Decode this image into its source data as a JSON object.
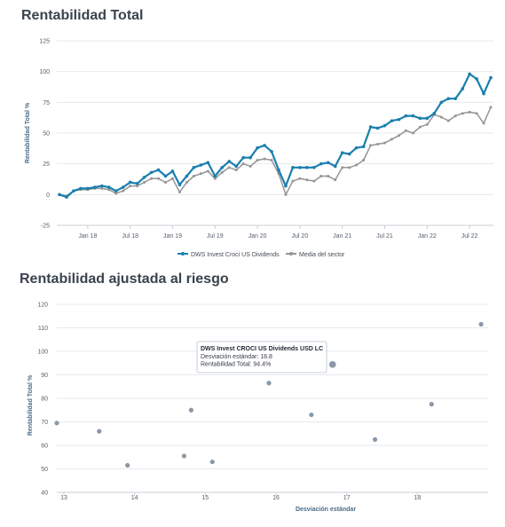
{
  "sections": {
    "total_return_title": "Rentabilidad Total",
    "risk_adjusted_title": "Rentabilidad ajustada al riesgo"
  },
  "chart_data": [
    {
      "type": "line",
      "ylabel": "Rentabilidad Total %",
      "xlabel": "",
      "ylim": [
        -25,
        125
      ],
      "yticks": [
        -25,
        0,
        25,
        50,
        75,
        100,
        125
      ],
      "xticks": [
        "Jan 18",
        "Jul 18",
        "Jan 19",
        "Jul 19",
        "Jan 20",
        "Jul 20",
        "Jan 21",
        "Jul 21",
        "Jan 22",
        "Jul 22"
      ],
      "x_start": "Sep 17",
      "x_step": "month",
      "grid": true,
      "legend_position": "bottom",
      "series": [
        {
          "name": "DWS Invest Croci US Dividends",
          "color": "#1a7fae",
          "values": [
            0,
            -2,
            3,
            5,
            5,
            6,
            7,
            6,
            3,
            6,
            10,
            9,
            14,
            18,
            20,
            15,
            19,
            8,
            15,
            22,
            24,
            26,
            15,
            22,
            27,
            23,
            30,
            30,
            38,
            40,
            35,
            20,
            7,
            22,
            22,
            22,
            22,
            25,
            26,
            23,
            34,
            33,
            38,
            39,
            55,
            54,
            56,
            60,
            61,
            64,
            64,
            62,
            62,
            66,
            75,
            78,
            78,
            86,
            98,
            94,
            82,
            95
          ]
        },
        {
          "name": "Media del sector",
          "color": "#959595",
          "values": [
            0,
            -1,
            3,
            4,
            4,
            5,
            5,
            4,
            1,
            3,
            7,
            7,
            10,
            13,
            13,
            10,
            13,
            2,
            10,
            15,
            17,
            19,
            13,
            18,
            22,
            20,
            25,
            23,
            28,
            29,
            28,
            17,
            0,
            11,
            13,
            12,
            11,
            15,
            15,
            12,
            22,
            22,
            24,
            28,
            40,
            41,
            42,
            45,
            48,
            52,
            50,
            55,
            57,
            65,
            63,
            60,
            64,
            66,
            67,
            66,
            58,
            71
          ]
        }
      ]
    },
    {
      "type": "scatter",
      "xlabel": "Desviación estándar",
      "ylabel": "Rentabilidad Total %",
      "xlim": [
        12.9,
        19
      ],
      "ylim": [
        40,
        120
      ],
      "xticks": [
        13,
        14,
        15,
        16,
        17,
        18
      ],
      "yticks": [
        40,
        50,
        60,
        70,
        80,
        90,
        100,
        110,
        120
      ],
      "grid": true,
      "points": [
        {
          "x": 12.9,
          "y": 69.5
        },
        {
          "x": 13.5,
          "y": 66
        },
        {
          "x": 13.9,
          "y": 51.5
        },
        {
          "x": 14.7,
          "y": 55.5
        },
        {
          "x": 14.8,
          "y": 75
        },
        {
          "x": 15.1,
          "y": 53
        },
        {
          "x": 15.9,
          "y": 86.5
        },
        {
          "x": 16.5,
          "y": 73
        },
        {
          "x": 16.8,
          "y": 94.4,
          "highlight": true
        },
        {
          "x": 17.4,
          "y": 62.5
        },
        {
          "x": 18.2,
          "y": 77.5
        },
        {
          "x": 18.9,
          "y": 111.5
        }
      ],
      "point_color": "#8a98a6",
      "highlight_color": "#8a98a6",
      "tooltip": {
        "title": "DWS Invest CROCI US Dividends USD LC",
        "lines": [
          "Desviación estándar: 16.8",
          "Rentabilidad Total: 94.4%"
        ]
      }
    }
  ]
}
